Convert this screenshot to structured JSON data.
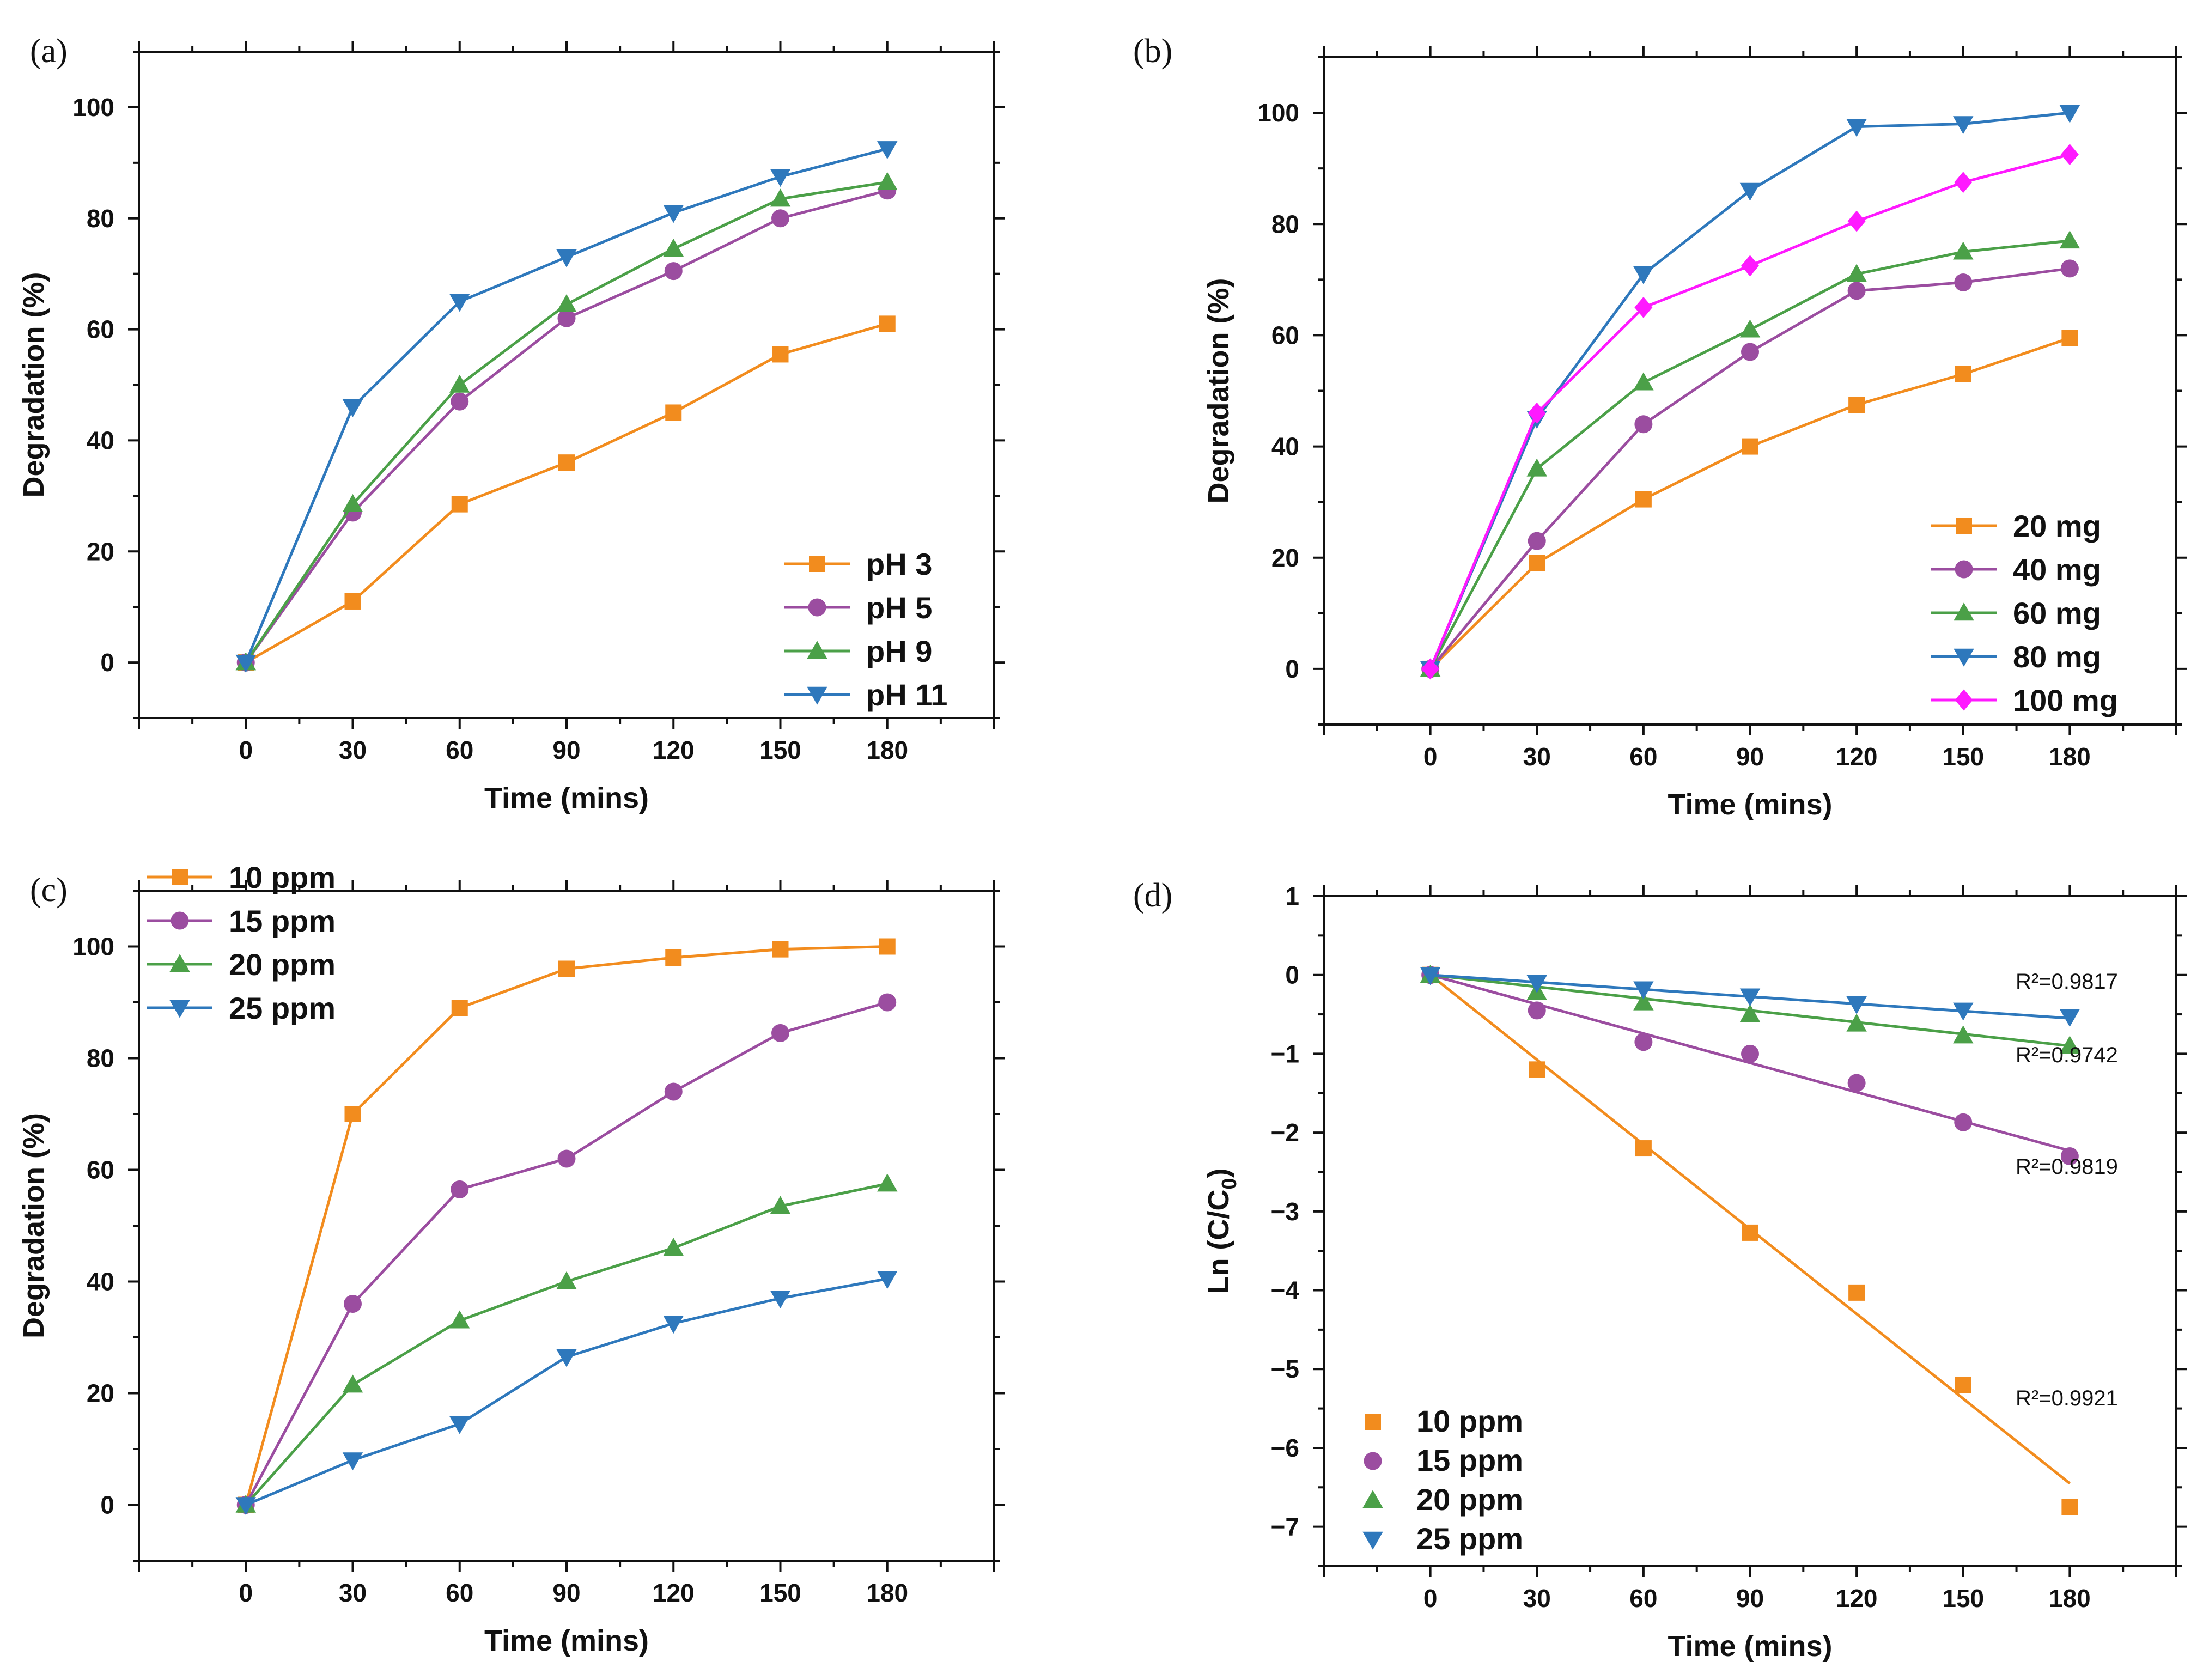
{
  "chart_data": [
    {
      "type": "line",
      "panel_label": "(a)",
      "xlabel": "Time (mins)",
      "ylabel": "Degradation (%)",
      "xlim": [
        -30,
        210
      ],
      "ylim": [
        -10,
        110
      ],
      "xticks": [
        0,
        30,
        60,
        90,
        120,
        150,
        180
      ],
      "yticks": [
        0,
        20,
        40,
        60,
        80,
        100
      ],
      "legend": "bottom-right",
      "x": [
        0,
        30,
        60,
        90,
        120,
        150,
        180
      ],
      "series": [
        {
          "name": "pH 3",
          "color": "#F28C1E",
          "marker": "square",
          "values": [
            0,
            11,
            28.5,
            36,
            45,
            55.5,
            61
          ]
        },
        {
          "name": "pH 5",
          "color": "#9B4DA0",
          "marker": "circle",
          "values": [
            0,
            27,
            47,
            62,
            70.5,
            80,
            85
          ]
        },
        {
          "name": "pH 9",
          "color": "#4BA048",
          "marker": "triangle-up",
          "values": [
            0,
            28.5,
            50,
            64.5,
            74.5,
            83.5,
            86.5
          ]
        },
        {
          "name": "pH 11",
          "color": "#2E78BC",
          "marker": "triangle-down",
          "values": [
            0,
            46,
            65,
            73,
            81,
            87.5,
            92.5
          ]
        }
      ]
    },
    {
      "type": "line",
      "panel_label": "(b)",
      "xlabel": "Time (mins)",
      "ylabel": "Degradation (%)",
      "xlim": [
        -30,
        210
      ],
      "ylim": [
        -10,
        110
      ],
      "xticks": [
        0,
        30,
        60,
        90,
        120,
        150,
        180
      ],
      "yticks": [
        0,
        20,
        40,
        60,
        80,
        100
      ],
      "legend": "bottom-right",
      "x": [
        0,
        30,
        60,
        90,
        120,
        150,
        180
      ],
      "series": [
        {
          "name": "20 mg",
          "color": "#F28C1E",
          "marker": "square",
          "values": [
            0,
            19,
            30.5,
            40,
            47.5,
            53,
            59.5
          ]
        },
        {
          "name": "40 mg",
          "color": "#9B4DA0",
          "marker": "circle",
          "values": [
            0,
            23,
            44,
            57,
            68,
            69.5,
            72
          ]
        },
        {
          "name": "60 mg",
          "color": "#4BA048",
          "marker": "triangle-up",
          "values": [
            0,
            36,
            51.5,
            61,
            71,
            75,
            77
          ]
        },
        {
          "name": "80 mg",
          "color": "#2E78BC",
          "marker": "triangle-down",
          "values": [
            0,
            45,
            71,
            86,
            97.5,
            98,
            100
          ]
        },
        {
          "name": "100 mg",
          "color": "#FF19FF",
          "marker": "diamond",
          "values": [
            0,
            46,
            65,
            72.5,
            80.5,
            87.5,
            92.5
          ]
        }
      ]
    },
    {
      "type": "line",
      "panel_label": "(c)",
      "xlabel": "Time (mins)",
      "ylabel": "Degradation (%)",
      "xlim": [
        -30,
        210
      ],
      "ylim": [
        -10,
        110
      ],
      "xticks": [
        0,
        30,
        60,
        90,
        120,
        150,
        180
      ],
      "yticks": [
        0,
        20,
        40,
        60,
        80,
        100
      ],
      "legend": "top-left",
      "x": [
        0,
        30,
        60,
        90,
        120,
        150,
        180
      ],
      "series": [
        {
          "name": "10 ppm",
          "color": "#F28C1E",
          "marker": "square",
          "values": [
            0,
            70,
            89,
            96,
            98,
            99.5,
            100
          ]
        },
        {
          "name": "15 ppm",
          "color": "#9B4DA0",
          "marker": "circle",
          "values": [
            0,
            36,
            56.5,
            62,
            74,
            84.5,
            90
          ]
        },
        {
          "name": "20 ppm",
          "color": "#4BA048",
          "marker": "triangle-up",
          "values": [
            0,
            21.5,
            33,
            40,
            46,
            53.5,
            57.5
          ]
        },
        {
          "name": "25 ppm",
          "color": "#2E78BC",
          "marker": "triangle-down",
          "values": [
            0,
            8,
            14.5,
            26.5,
            32.5,
            37,
            40.5
          ]
        }
      ]
    },
    {
      "type": "scatter",
      "panel_label": "(d)",
      "xlabel": "Time (mins)",
      "ylabel": "Ln (C/C",
      "ylabel_sub": "0",
      "ylabel_end": ")",
      "xlim": [
        -30,
        210
      ],
      "ylim": [
        -7.5,
        1
      ],
      "xticks": [
        0,
        30,
        60,
        90,
        120,
        150,
        180
      ],
      "yticks": [
        1,
        0,
        -1,
        -2,
        -3,
        -4,
        -5,
        -6,
        -7
      ],
      "legend": "bottom-left",
      "x": [
        0,
        30,
        60,
        90,
        120,
        150,
        180
      ],
      "series": [
        {
          "name": "10 ppm",
          "color": "#F28C1E",
          "marker": "square",
          "values": [
            0,
            -1.2,
            -2.2,
            -3.27,
            -4.03,
            -5.2,
            -6.75
          ],
          "fit": [
            0,
            -6.45
          ],
          "r2": "R²=0.9921"
        },
        {
          "name": "15 ppm",
          "color": "#9B4DA0",
          "marker": "circle",
          "values": [
            0,
            -0.45,
            -0.85,
            -1.0,
            -1.37,
            -1.87,
            -2.3
          ],
          "fit": [
            0,
            -2.23
          ],
          "r2": "R²=0.9819"
        },
        {
          "name": "20 ppm",
          "color": "#4BA048",
          "marker": "triangle-up",
          "values": [
            0,
            -0.22,
            -0.35,
            -0.5,
            -0.62,
            -0.77,
            -0.9
          ],
          "fit": [
            0,
            -0.9
          ],
          "r2": "R²=0.9742"
        },
        {
          "name": "25 ppm",
          "color": "#2E78BC",
          "marker": "triangle-down",
          "values": [
            0,
            -0.1,
            -0.18,
            -0.27,
            -0.37,
            -0.45,
            -0.53
          ],
          "fit": [
            0,
            -0.55
          ],
          "r2": "R²=0.9817"
        }
      ]
    }
  ]
}
